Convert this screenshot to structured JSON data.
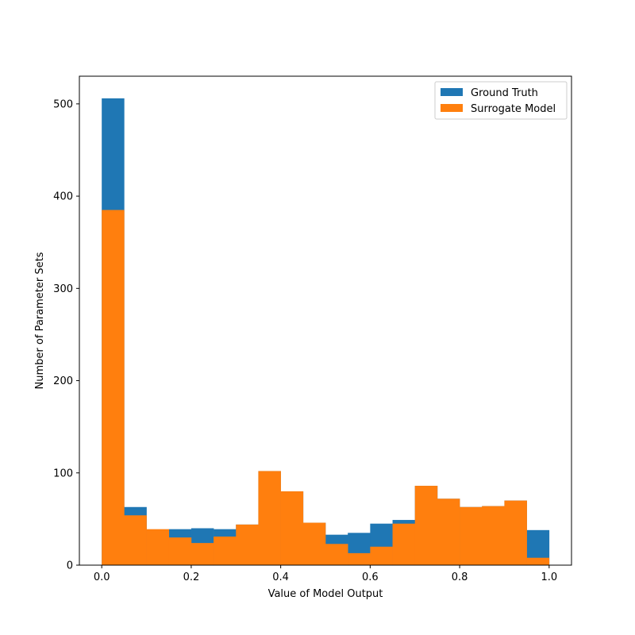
{
  "chart_data": {
    "type": "bar",
    "title": "",
    "xlabel": "Value of Model Output",
    "ylabel": "Number of Parameter Sets",
    "xlim": [
      -0.05,
      1.05
    ],
    "ylim": [
      0,
      530
    ],
    "bin_width": 0.05,
    "bin_starts": [
      0.0,
      0.05,
      0.1,
      0.15,
      0.2,
      0.25,
      0.3,
      0.35,
      0.4,
      0.45,
      0.5,
      0.55,
      0.6,
      0.65,
      0.7,
      0.75,
      0.8,
      0.85,
      0.9,
      0.95
    ],
    "x_ticks": [
      {
        "value": 0.0,
        "label": "0.0"
      },
      {
        "value": 0.2,
        "label": "0.2"
      },
      {
        "value": 0.4,
        "label": "0.4"
      },
      {
        "value": 0.6,
        "label": "0.6"
      },
      {
        "value": 0.8,
        "label": "0.8"
      },
      {
        "value": 1.0,
        "label": "1.0"
      }
    ],
    "y_ticks": [
      {
        "value": 0,
        "label": "0"
      },
      {
        "value": 100,
        "label": "100"
      },
      {
        "value": 200,
        "label": "200"
      },
      {
        "value": 300,
        "label": "300"
      },
      {
        "value": 400,
        "label": "400"
      },
      {
        "value": 500,
        "label": "500"
      }
    ],
    "grid": false,
    "legend_position": "top-right",
    "series": [
      {
        "name": "Ground Truth",
        "color": "#1f77b4",
        "values": [
          506,
          63,
          38,
          39,
          40,
          39,
          44,
          102,
          80,
          46,
          33,
          35,
          45,
          49,
          86,
          72,
          63,
          64,
          70,
          38
        ]
      },
      {
        "name": "Surrogate Model",
        "color": "#ff7f0e",
        "values": [
          385,
          54,
          39,
          30,
          24,
          31,
          44,
          102,
          80,
          46,
          23,
          13,
          20,
          45,
          86,
          72,
          63,
          64,
          70,
          8
        ]
      }
    ]
  }
}
